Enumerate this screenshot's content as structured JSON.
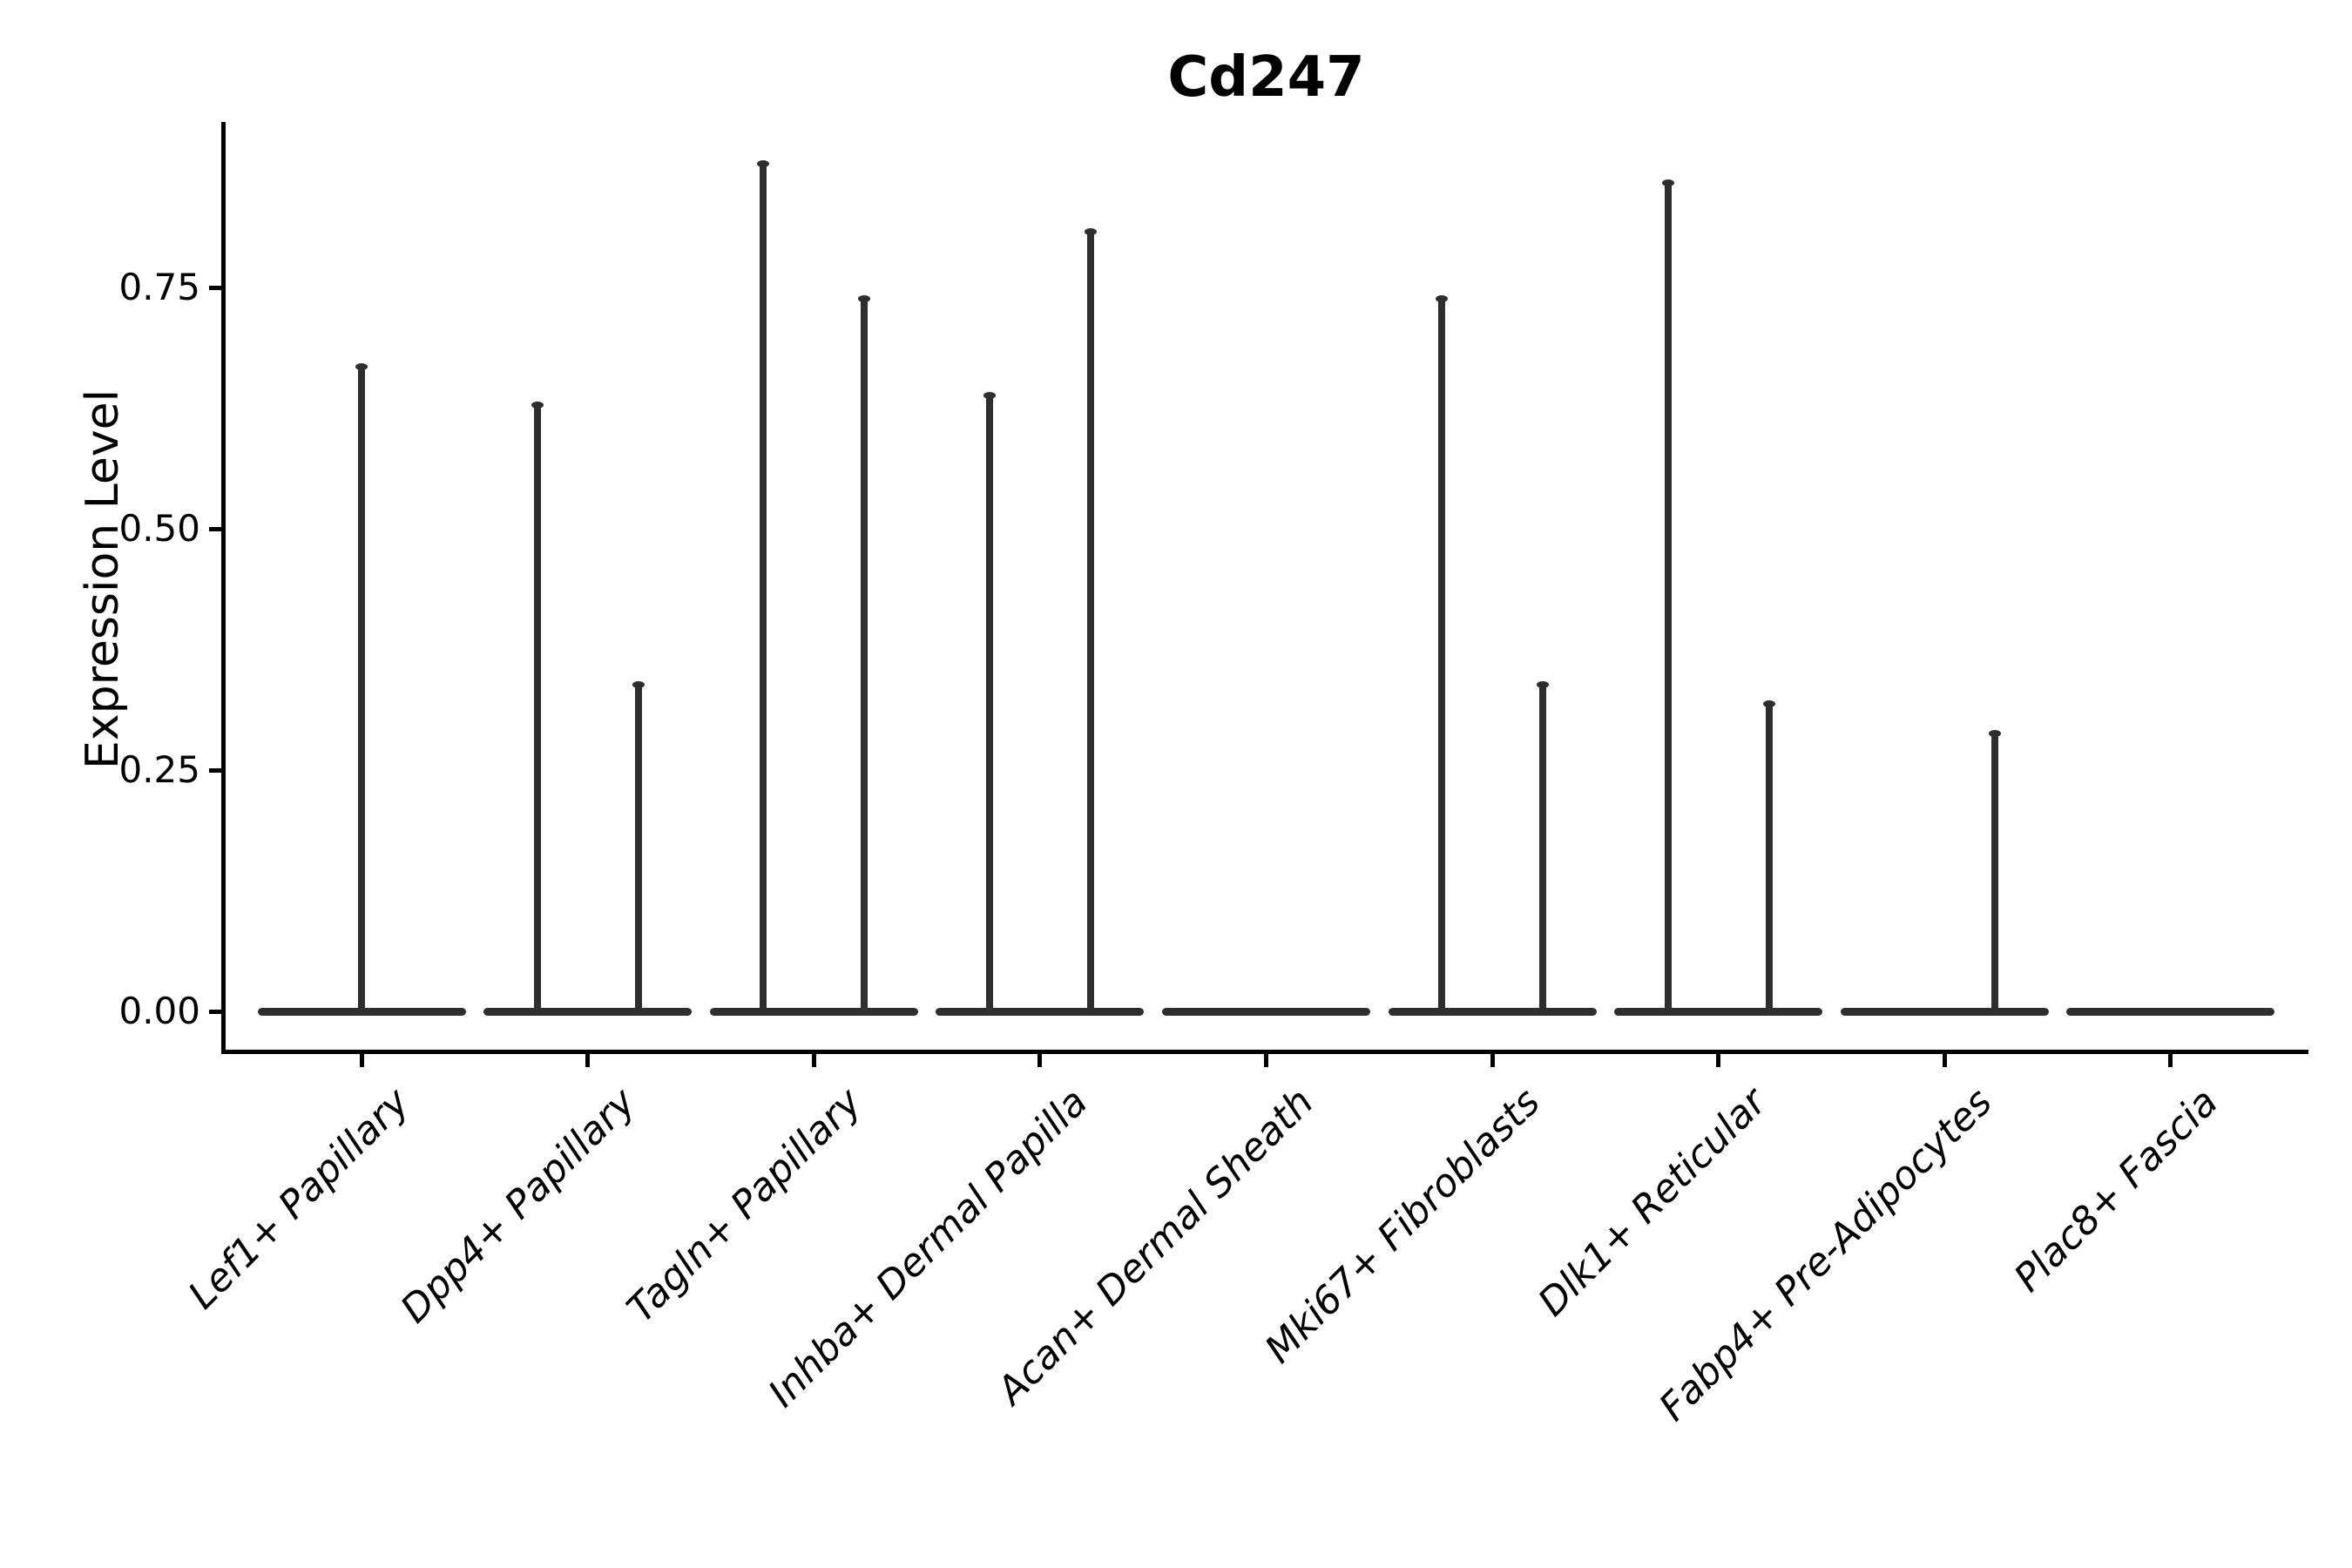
{
  "title": "Cd247",
  "y_axis": {
    "label": "Expression Level",
    "tick_labels": [
      "0.00",
      "0.25",
      "0.50",
      "0.75"
    ],
    "tick_values": [
      0,
      0.25,
      0.5,
      0.75
    ]
  },
  "chart_data": {
    "type": "violin",
    "title": "Cd247",
    "xlabel": "",
    "ylabel": "Expression Level",
    "ylim": [
      0,
      0.92
    ],
    "yticks": [
      0,
      0.25,
      0.5,
      0.75
    ],
    "ytick_labels": [
      "0.00",
      "0.25",
      "0.50",
      "0.75"
    ],
    "grid": false,
    "legend": false,
    "description": "Violin plot of Cd247 expression; density collapsed to a flat line at 0 with thin spikes up to the maximum expressed value per group",
    "categories": [
      "Lef1+ Papillary",
      "Dpp4+ Papillary",
      "Tagln+ Papillary",
      "Inhba+ Dermal Papilla",
      "Acan+ Dermal Sheath",
      "Mki67+ Fibroblasts",
      "Dlk1+ Reticular",
      "Fabp4+ Pre-Adipocytes",
      "Plac8+ Fascia"
    ],
    "violins": [
      {
        "category": "Lef1+ Papillary",
        "spikes": [
          {
            "position": "center",
            "max_expression": 0.67
          }
        ]
      },
      {
        "category": "Dpp4+ Papillary",
        "spikes": [
          {
            "position": "left",
            "max_expression": 0.63
          },
          {
            "position": "right",
            "max_expression": 0.34
          }
        ]
      },
      {
        "category": "Tagln+ Papillary",
        "spikes": [
          {
            "position": "left",
            "max_expression": 0.88
          },
          {
            "position": "right",
            "max_expression": 0.74
          }
        ]
      },
      {
        "category": "Inhba+ Dermal Papilla",
        "spikes": [
          {
            "position": "left",
            "max_expression": 0.64
          },
          {
            "position": "right",
            "max_expression": 0.81
          }
        ]
      },
      {
        "category": "Acan+ Dermal Sheath",
        "spikes": []
      },
      {
        "category": "Mki67+ Fibroblasts",
        "spikes": [
          {
            "position": "left",
            "max_expression": 0.74
          },
          {
            "position": "right",
            "max_expression": 0.34
          }
        ]
      },
      {
        "category": "Dlk1+ Reticular",
        "spikes": [
          {
            "position": "left",
            "max_expression": 0.86
          },
          {
            "position": "right",
            "max_expression": 0.32
          }
        ]
      },
      {
        "category": "Fabp4+ Pre-Adipocytes",
        "spikes": [
          {
            "position": "right",
            "max_expression": 0.29
          }
        ]
      },
      {
        "category": "Plac8+ Fascia",
        "spikes": []
      }
    ],
    "colors": {
      "violin_line": "#2e2e2e",
      "axis": "#000000",
      "text": "#000000",
      "background": "#ffffff"
    }
  }
}
